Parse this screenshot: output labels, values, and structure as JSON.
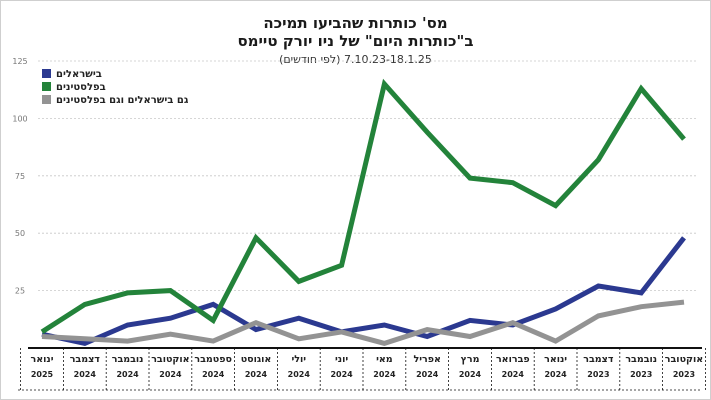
{
  "header": {
    "title_line1": "מס' כותרות שהביעו תמיכה",
    "title_line2": "ב\"כותרות היום\" של ניו יורק טיימס",
    "subtitle": "7.10.23-18.1.25 (לפי חודשים)"
  },
  "chart_data": {
    "type": "line",
    "title": "מס' כותרות שהביעו תמיכה ב\"כותרות היום\" של ניו יורק טיימס",
    "subtitle": "7.10.23-18.1.25 (לפי חודשים)",
    "ylim": [
      0,
      125
    ],
    "yticks": [
      25,
      50,
      75,
      100,
      125
    ],
    "grid": true,
    "legend_position": "top-left",
    "categories": [
      {
        "month": "ינואר",
        "year": "2025"
      },
      {
        "month": "דצמבר",
        "year": "2024"
      },
      {
        "month": "נובמבר",
        "year": "2024"
      },
      {
        "month": "אוקטובר",
        "year": "2024"
      },
      {
        "month": "ספטמבר",
        "year": "2024"
      },
      {
        "month": "אוגוסט",
        "year": "2024"
      },
      {
        "month": "יולי",
        "year": "2024"
      },
      {
        "month": "יוני",
        "year": "2024"
      },
      {
        "month": "מאי",
        "year": "2024"
      },
      {
        "month": "אפריל",
        "year": "2024"
      },
      {
        "month": "מרץ",
        "year": "2024"
      },
      {
        "month": "פברואר",
        "year": "2024"
      },
      {
        "month": "ינואר",
        "year": "2024"
      },
      {
        "month": "דצמבר",
        "year": "2023"
      },
      {
        "month": "נובמבר",
        "year": "2023"
      },
      {
        "month": "אוקטובר",
        "year": "2023"
      }
    ],
    "series": [
      {
        "name": "בישראלים",
        "color": "#2b3990",
        "values": [
          6,
          2,
          10,
          13,
          19,
          8,
          13,
          7,
          10,
          5,
          12,
          10,
          17,
          27,
          24,
          48
        ]
      },
      {
        "name": "בפלסטינים",
        "color": "#23833a",
        "values": [
          7,
          19,
          24,
          25,
          12,
          48,
          29,
          36,
          115,
          94,
          74,
          72,
          62,
          82,
          113,
          91
        ]
      },
      {
        "name": "גם בישראלים וגם בפלסטינים",
        "color": "#939393",
        "values": [
          5,
          4,
          3,
          6,
          3,
          11,
          4,
          7,
          2,
          8,
          5,
          11,
          3,
          14,
          18,
          20
        ]
      }
    ]
  }
}
